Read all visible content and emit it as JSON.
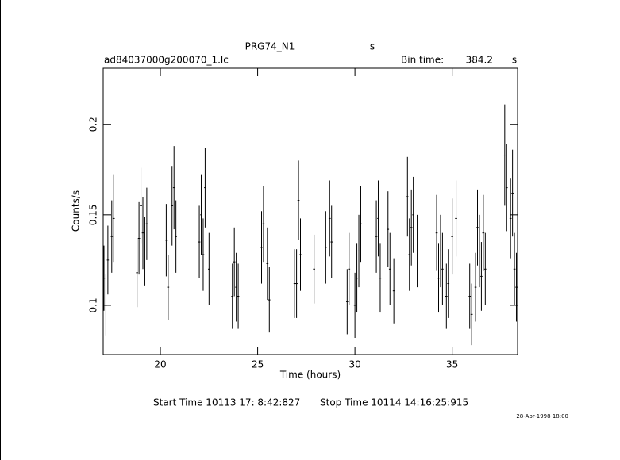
{
  "chart_data": {
    "type": "errorbar",
    "title": "PRG74_N1",
    "title_unit": "s",
    "file_name": "ad84037000g200070_1.lc",
    "bin_time_label": "Bin time:",
    "bin_time": 384.2,
    "bin_time_unit": "s",
    "xlabel": "Time (hours)",
    "ylabel": "Counts/s",
    "start_time": "Start Time 10113 17: 8:42:827",
    "stop_time": "Stop Time 10114 14:16:25:915",
    "date": "28-Apr-1998 18:00",
    "color": "#000000",
    "xlim": [
      17.06,
      38.36
    ],
    "ylim": [
      0.0728,
      0.231
    ],
    "xticks": [
      20,
      25,
      30,
      35
    ],
    "yticks": [
      0.1,
      0.15,
      0.2
    ],
    "x": [
      17.1,
      17.2,
      17.3,
      17.5,
      17.6,
      18.8,
      18.9,
      19.0,
      19.1,
      19.2,
      19.3,
      20.3,
      20.4,
      20.6,
      20.7,
      20.8,
      22.0,
      22.1,
      22.2,
      22.3,
      22.5,
      23.7,
      23.8,
      23.9,
      24.0,
      25.2,
      25.3,
      25.5,
      25.6,
      26.9,
      27.0,
      27.1,
      27.2,
      27.9,
      28.5,
      28.7,
      28.8,
      29.6,
      29.7,
      30.0,
      30.1,
      30.2,
      30.3,
      31.1,
      31.2,
      31.3,
      31.7,
      31.8,
      32.0,
      32.7,
      32.8,
      32.9,
      33.0,
      33.2,
      34.2,
      34.3,
      34.4,
      34.5,
      34.7,
      34.8,
      35.0,
      35.2,
      35.9,
      36.0,
      36.2,
      36.3,
      36.4,
      36.5,
      36.6,
      36.7,
      37.7,
      37.8,
      38.0,
      38.1,
      38.2,
      38.3
    ],
    "values": [
      0.115,
      0.1,
      0.125,
      0.138,
      0.148,
      0.118,
      0.137,
      0.155,
      0.14,
      0.13,
      0.145,
      0.136,
      0.11,
      0.155,
      0.165,
      0.138,
      0.135,
      0.15,
      0.128,
      0.165,
      0.12,
      0.105,
      0.124,
      0.11,
      0.105,
      0.132,
      0.145,
      0.123,
      0.103,
      0.112,
      0.112,
      0.158,
      0.128,
      0.12,
      0.132,
      0.148,
      0.135,
      0.102,
      0.12,
      0.1,
      0.115,
      0.13,
      0.145,
      0.138,
      0.148,
      0.115,
      0.142,
      0.12,
      0.108,
      0.16,
      0.128,
      0.143,
      0.15,
      0.13,
      0.14,
      0.115,
      0.13,
      0.12,
      0.105,
      0.112,
      0.138,
      0.148,
      0.105,
      0.095,
      0.11,
      0.143,
      0.13,
      0.116,
      0.14,
      0.12,
      0.183,
      0.165,
      0.148,
      0.162,
      0.12,
      0.11
    ],
    "errors": [
      0.018,
      0.017,
      0.019,
      0.02,
      0.024,
      0.019,
      0.02,
      0.021,
      0.02,
      0.019,
      0.02,
      0.02,
      0.018,
      0.022,
      0.023,
      0.02,
      0.02,
      0.022,
      0.02,
      0.022,
      0.02,
      0.018,
      0.019,
      0.019,
      0.018,
      0.02,
      0.021,
      0.02,
      0.018,
      0.019,
      0.019,
      0.022,
      0.02,
      0.019,
      0.02,
      0.021,
      0.02,
      0.018,
      0.02,
      0.018,
      0.019,
      0.02,
      0.021,
      0.02,
      0.021,
      0.019,
      0.021,
      0.02,
      0.018,
      0.022,
      0.02,
      0.021,
      0.021,
      0.02,
      0.021,
      0.019,
      0.02,
      0.02,
      0.018,
      0.019,
      0.021,
      0.021,
      0.018,
      0.017,
      0.019,
      0.021,
      0.02,
      0.019,
      0.021,
      0.02,
      0.028,
      0.024,
      0.022,
      0.024,
      0.02,
      0.019
    ]
  }
}
